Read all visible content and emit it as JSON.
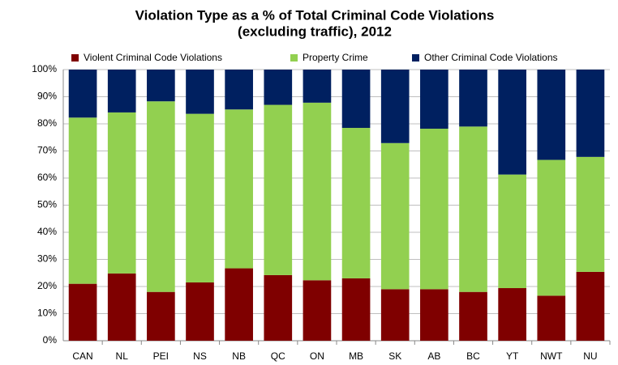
{
  "chart_data": {
    "type": "stacked_bar",
    "title": [
      "Violation Type as a % of Total Criminal Code Violations",
      "(excluding traffic), 2012"
    ],
    "categories": [
      "CAN",
      "NL",
      "PEI",
      "NS",
      "NB",
      "QC",
      "ON",
      "MB",
      "SK",
      "AB",
      "BC",
      "YT",
      "NWT",
      "NU"
    ],
    "series": [
      {
        "name": "Violent Criminal Code Violations",
        "color": "#7f0000",
        "values": [
          21,
          24.8,
          18,
          21.5,
          26.7,
          24.2,
          22.3,
          23,
          19,
          19,
          18,
          19.4,
          16.6,
          25.4
        ]
      },
      {
        "name": "Property Crime",
        "color": "#92d050",
        "values": [
          61.3,
          59.4,
          70.3,
          62.2,
          58.6,
          62.8,
          65.5,
          55.5,
          53.9,
          59.2,
          61,
          41.9,
          50.1,
          42.4
        ]
      },
      {
        "name": "Other Criminal Code Violations",
        "color": "#002060",
        "values": [
          17.7,
          15.8,
          11.7,
          16.3,
          14.7,
          13,
          12.2,
          21.5,
          27.1,
          21.8,
          21,
          38.7,
          33.3,
          32.2
        ]
      }
    ],
    "ylim": [
      0,
      100
    ],
    "yticks": [
      {
        "value": 0,
        "label": "0%"
      },
      {
        "value": 10,
        "label": "10%"
      },
      {
        "value": 20,
        "label": "20%"
      },
      {
        "value": 30,
        "label": "30%"
      },
      {
        "value": 40,
        "label": "40%"
      },
      {
        "value": 50,
        "label": "50%"
      },
      {
        "value": 60,
        "label": "60%"
      },
      {
        "value": 70,
        "label": "70%"
      },
      {
        "value": 80,
        "label": "80%"
      },
      {
        "value": 90,
        "label": "90%"
      },
      {
        "value": 100,
        "label": "100%"
      }
    ],
    "grid": true,
    "legend": "top"
  }
}
